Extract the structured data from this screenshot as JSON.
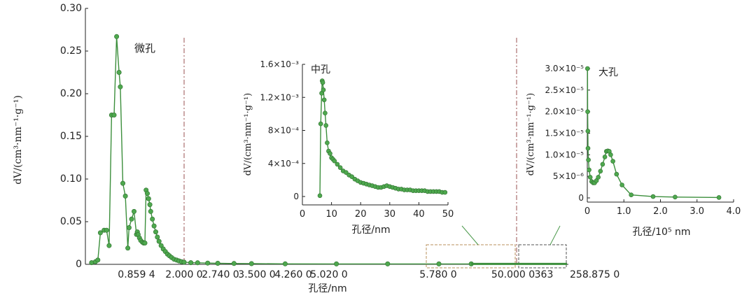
{
  "chart_data": [
    {
      "type": "line",
      "id": "main",
      "xlabel": "孔径/nm",
      "ylabel": "dV/(cm³·nm⁻¹·g⁻¹)",
      "ylim": [
        0,
        0.3
      ],
      "y_ticks": [
        "0",
        "0.05",
        "0.10",
        "0.15",
        "0.20",
        "0.25",
        "0.30"
      ],
      "x_tick_labels": [
        "0.859 4",
        "2.000 0",
        "2.740 0",
        "3.500 0",
        "4.260 0",
        "5.020 0",
        "5.780 0",
        "50.000 0",
        "363",
        "258.875 0"
      ],
      "annotations": [
        "微孔"
      ],
      "series": [
        {
          "x": [
            0.5,
            0.53,
            0.55,
            0.57,
            0.6,
            0.62,
            0.64,
            0.66,
            0.68,
            0.7,
            0.72,
            0.73,
            0.75,
            0.77,
            0.79,
            0.8,
            0.82,
            0.84,
            0.86,
            0.88,
            0.9,
            0.93,
            0.96,
            1.0,
            1.03,
            1.06,
            1.09,
            1.12,
            1.15,
            1.18,
            1.2,
            1.24,
            1.28,
            1.32,
            1.36,
            1.4,
            1.45,
            1.5,
            1.55,
            1.6,
            1.65,
            1.7,
            1.76,
            1.82,
            1.88,
            1.94,
            2.0,
            2.1,
            2.2,
            2.35,
            2.5,
            2.74,
            3.0,
            3.5,
            4.26,
            5.02,
            5.78,
            6.26
          ],
          "y": [
            0.002,
            0.003,
            0.005,
            0.037,
            0.04,
            0.04,
            0.022,
            0.175,
            0.175,
            0.267,
            0.225,
            0.208,
            0.095,
            0.08,
            0.019,
            0.043,
            0.053,
            0.062,
            0.035,
            0.038,
            0.035,
            0.031,
            0.028,
            0.026,
            0.025,
            0.025,
            0.087,
            0.083,
            0.077,
            0.07,
            0.062,
            0.053,
            0.045,
            0.038,
            0.032,
            0.027,
            0.022,
            0.018,
            0.015,
            0.012,
            0.01,
            0.008,
            0.006,
            0.005,
            0.004,
            0.003,
            0.0025,
            0.002,
            0.0018,
            0.0015,
            0.0012,
            0.001,
            0.0008,
            0.0006,
            0.0005,
            0.0005,
            0.0005,
            0.0005
          ]
        }
      ]
    },
    {
      "type": "line",
      "id": "inset-meso",
      "title": "中孔",
      "xlabel": "孔径/nm",
      "ylabel": "dV/(cm³·nm⁻¹·g⁻¹)",
      "xlim": [
        0,
        50
      ],
      "ylim": [
        0,
        0.0016
      ],
      "x_ticks": [
        "0",
        "10",
        "20",
        "30",
        "40",
        "50"
      ],
      "y_ticks": [
        "0",
        "4×10⁻⁴",
        "8×10⁻⁴",
        "1.2×10⁻³",
        "1.6×10⁻³"
      ],
      "series": [
        {
          "x": [
            6.0,
            6.3,
            6.6,
            6.8,
            7.0,
            7.2,
            7.5,
            7.8,
            8.1,
            8.5,
            9.0,
            9.5,
            10,
            10.5,
            11,
            12,
            13,
            14,
            15,
            16,
            17,
            18,
            19,
            20,
            21,
            22,
            23,
            24,
            25,
            26,
            27,
            28,
            29,
            30,
            31,
            32,
            33,
            34,
            35,
            36,
            37,
            38,
            39,
            40,
            41,
            42,
            43,
            44,
            45,
            46,
            47,
            48,
            49
          ],
          "y": [
            1e-05,
            0.00088,
            0.00125,
            0.0014,
            0.00138,
            0.00129,
            0.00117,
            0.00101,
            0.00086,
            0.00065,
            0.00055,
            0.00052,
            0.00047,
            0.00045,
            0.00043,
            0.00039,
            0.00035,
            0.00031,
            0.00029,
            0.00026,
            0.00024,
            0.00021,
            0.00019,
            0.00017,
            0.00016,
            0.00015,
            0.00014,
            0.00013,
            0.00012,
            0.00011,
            0.00011,
            0.00012,
            0.00013,
            0.00012,
            0.00011,
            0.0001,
            9e-05,
            9e-05,
            8e-05,
            8e-05,
            8e-05,
            7e-05,
            7e-05,
            7e-05,
            7e-05,
            7e-05,
            6e-05,
            6e-05,
            6e-05,
            6e-05,
            6e-05,
            5e-05,
            5e-05
          ]
        }
      ]
    },
    {
      "type": "line",
      "id": "inset-macro",
      "title": "大孔",
      "xlabel": "孔径/10⁵ nm",
      "ylabel": "dV/(cm³·nm⁻¹·g⁻¹)",
      "xlim": [
        0,
        4
      ],
      "ylim": [
        0,
        3e-05
      ],
      "x_ticks": [
        "0",
        "1.0",
        "2.0",
        "3.0",
        "4.0"
      ],
      "y_ticks": [
        "0",
        "5×10⁻⁶",
        "1.0×10⁻⁵",
        "1.5×10⁻⁵",
        "2.0×10⁻⁵",
        "2.5×10⁻⁵",
        "3.0×10⁻⁵"
      ],
      "series": [
        {
          "x": [
            0.005,
            0.01,
            0.015,
            0.02,
            0.03,
            0.05,
            0.08,
            0.12,
            0.16,
            0.2,
            0.25,
            0.3,
            0.36,
            0.42,
            0.48,
            0.52,
            0.56,
            0.6,
            0.64,
            0.7,
            0.8,
            0.95,
            1.2,
            1.8,
            2.4,
            3.6
          ],
          "y": [
            3e-05,
            2e-05,
            1.55e-05,
            1.15e-05,
            8.8e-06,
            6.5e-06,
            4.8e-06,
            3.8e-06,
            3.5e-06,
            3.5e-06,
            4e-06,
            4.8e-06,
            6.2e-06,
            7.8e-06,
            9.5e-06,
            1.08e-05,
            1.09e-05,
            1.08e-05,
            1e-05,
            8.5e-06,
            5.5e-06,
            3e-06,
            7e-07,
            3e-07,
            2e-07,
            1e-07
          ]
        }
      ]
    }
  ]
}
